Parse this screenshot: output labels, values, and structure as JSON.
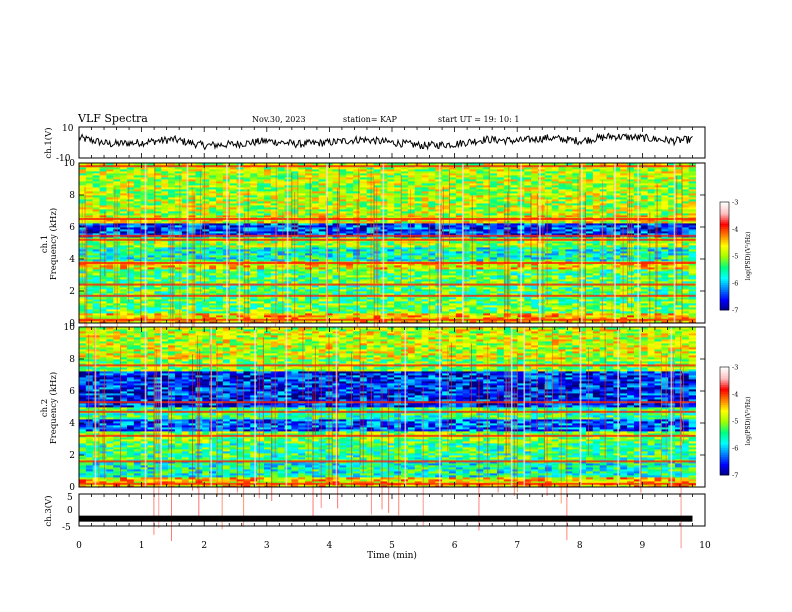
{
  "header": {
    "title": "VLF Spectra",
    "date": "Nov.30, 2023",
    "station": "station= KAP",
    "start": "start  UT =   19: 10: 1"
  },
  "colors": {
    "spectrogram_scale": [
      "#00007a",
      "#0000ff",
      "#0080ff",
      "#00ffff",
      "#00ff80",
      "#a0ff00",
      "#ffff00",
      "#ff8000",
      "#ff0000",
      "#ffbfbf",
      "#ffffff"
    ],
    "trace": "#000000"
  },
  "chart_data": [
    {
      "type": "line",
      "name": "ch1-waveform",
      "ylabel": "ch.1(V)",
      "ylim": [
        -10,
        10
      ],
      "yticks": [
        "10",
        "-10"
      ],
      "xlim": [
        0,
        10
      ],
      "note_values": "noisy waveform roughly between -5 and 9 V, mean near 0 V",
      "x": [
        0,
        0.5,
        1,
        1.5,
        2,
        2.5,
        3,
        3.5,
        4,
        4.5,
        5,
        5.5,
        6,
        6.5,
        7,
        7.5,
        8,
        8.5,
        9,
        9.5,
        9.8
      ],
      "y": [
        3,
        -1,
        0,
        2,
        -2,
        -1,
        1,
        -1,
        0,
        2,
        0,
        -2,
        -1,
        2,
        1,
        3,
        1,
        4,
        3,
        1,
        2
      ]
    },
    {
      "type": "heatmap",
      "name": "ch1-spectrogram",
      "ylabel": "ch.1\nFrequency (kHz)",
      "ylim": [
        0,
        10
      ],
      "yticks": [
        "0",
        "2",
        "4",
        "6",
        "8",
        "10"
      ],
      "xlim": [
        0,
        10
      ],
      "colorbar": {
        "label": "log(PSD)(V²/Hz)",
        "range": [
          -7,
          -3
        ],
        "ticks": [
          "-3",
          "-4",
          "-5",
          "-6",
          "-7"
        ]
      },
      "bands": [
        {
          "from": 0,
          "to": 0.6,
          "level": -4.5
        },
        {
          "from": 0.6,
          "to": 1.5,
          "level": -5.2
        },
        {
          "from": 1.5,
          "to": 3.4,
          "level": -5.3
        },
        {
          "from": 3.4,
          "to": 3.9,
          "level": -4.6
        },
        {
          "from": 3.9,
          "to": 4.8,
          "level": -5.6
        },
        {
          "from": 4.8,
          "to": 5.4,
          "level": -5.0
        },
        {
          "from": 5.4,
          "to": 6.3,
          "level": -6.4
        },
        {
          "from": 6.3,
          "to": 6.7,
          "level": -4.7
        },
        {
          "from": 6.7,
          "to": 10,
          "level": -4.9
        }
      ],
      "lines_khz": [
        0.2,
        1.7,
        2.4,
        3.75,
        5.2,
        5.45,
        6.5,
        9.8
      ],
      "spike_minutes": [
        1.05,
        1.72,
        2.35,
        2.55,
        3.32,
        3.95,
        4.85,
        5.75,
        6.12,
        7.05,
        7.35,
        8.02,
        8.55,
        8.92,
        9.5
      ]
    },
    {
      "type": "heatmap",
      "name": "ch2-spectrogram",
      "ylabel": "ch.2\nFrequency (kHz)",
      "ylim": [
        0,
        10
      ],
      "yticks": [
        "0",
        "2",
        "4",
        "6",
        "8",
        "10"
      ],
      "xlim": [
        0,
        10
      ],
      "colorbar": {
        "label": "log(PSD)(V²/Hz)",
        "range": [
          -7,
          -3
        ],
        "ticks": [
          "-3",
          "-4",
          "-5",
          "-6",
          "-7"
        ]
      },
      "bands": [
        {
          "from": 0,
          "to": 0.6,
          "level": -4.5
        },
        {
          "from": 0.6,
          "to": 1.6,
          "level": -5.6
        },
        {
          "from": 1.6,
          "to": 2.8,
          "level": -5.4
        },
        {
          "from": 2.8,
          "to": 3.5,
          "level": -5.1
        },
        {
          "from": 3.5,
          "to": 4.3,
          "level": -6.3
        },
        {
          "from": 4.3,
          "to": 5.0,
          "level": -5.4
        },
        {
          "from": 5.0,
          "to": 7.2,
          "level": -6.5
        },
        {
          "from": 7.2,
          "to": 8.0,
          "level": -5.1
        },
        {
          "from": 8.0,
          "to": 10,
          "level": -4.8
        }
      ],
      "lines_khz": [
        0.2,
        1.6,
        3.2,
        4.7,
        5.3,
        7.6
      ],
      "spike_minutes": [
        0.25,
        1.05,
        1.3,
        2.1,
        2.8,
        3.3,
        4.1,
        5.2,
        5.75,
        6.9,
        7.1,
        8.0,
        8.6,
        8.95,
        9.45
      ]
    },
    {
      "type": "line",
      "name": "ch3-trace",
      "ylabel": "ch.3(V)",
      "ylim": [
        -5,
        5
      ],
      "yticks": [
        "5",
        "0",
        "-5"
      ],
      "xlim": [
        0,
        10
      ],
      "xlabel": "Time (min)",
      "xticks": [
        "0",
        "1",
        "2",
        "3",
        "4",
        "5",
        "6",
        "7",
        "8",
        "9",
        "10"
      ],
      "x": [
        0,
        9.8
      ],
      "y": [
        -2.7,
        -2.7
      ]
    }
  ]
}
